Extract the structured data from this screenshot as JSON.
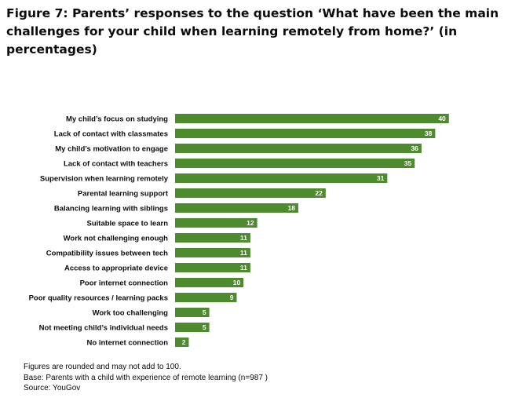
{
  "figure": {
    "title": "Figure 7: Parents’ responses to the question ‘What have been the main challenges for your child when learning remotely from home?’ (in percentages)"
  },
  "chart_data": {
    "type": "bar",
    "orientation": "horizontal",
    "categories": [
      "My child’s focus on studying",
      "Lack of contact with classmates",
      "My child’s motivation to engage",
      "Lack of contact with teachers",
      "Supervision when learning remotely",
      "Parental learning support",
      "Balancing learning with siblings",
      "Suitable space to learn",
      "Work not challenging enough",
      "Compatibility issues between tech",
      "Access to appropriate device",
      "Poor internet connection",
      "Poor quality resources / learning packs",
      "Work too challenging",
      "Not meeting child’s individual needs",
      "No internet connection"
    ],
    "values": [
      40,
      38,
      36,
      35,
      31,
      22,
      18,
      12,
      11,
      11,
      11,
      10,
      9,
      5,
      5,
      2
    ],
    "xlim": [
      0,
      40
    ],
    "grid": false,
    "legend": "none",
    "bar_color": "#4e8a2e",
    "value_label_color": "#ffffff"
  },
  "notes": [
    "Figures are rounded and may not add to 100.",
    "Base: Parents with  a child  with  experience of remote learning  (n=987 )",
    "Source:  YouGov"
  ]
}
